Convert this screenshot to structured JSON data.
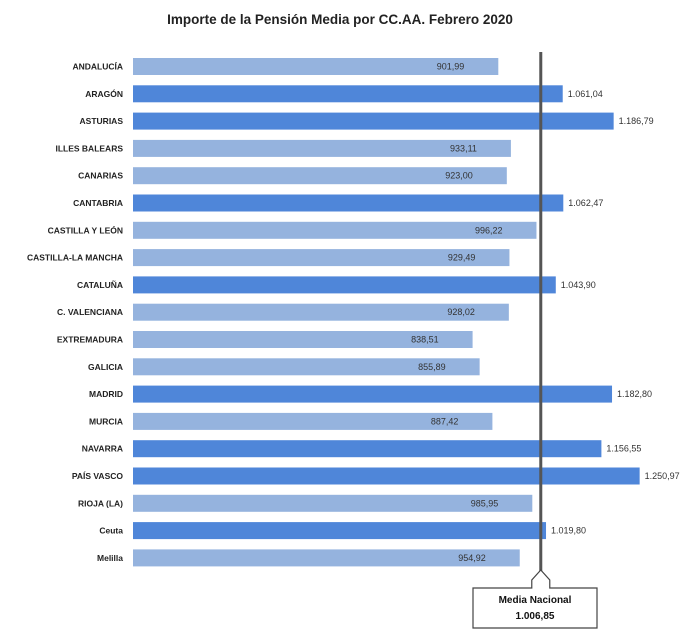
{
  "chart_data": {
    "type": "bar",
    "orientation": "horizontal",
    "title": "Importe de la Pensión Media  por CC.AA. Febrero 2020",
    "categories": [
      "ANDALUCÍA",
      "ARAGÓN",
      "ASTURIAS",
      "ILLES BALEARS",
      "CANARIAS",
      "CANTABRIA",
      "CASTILLA Y LEÓN",
      "CASTILLA-LA MANCHA",
      "CATALUÑA",
      "C. VALENCIANA",
      "EXTREMADURA",
      "GALICIA",
      "MADRID",
      "MURCIA",
      "NAVARRA",
      "PAÍS VASCO",
      "RIOJA (LA)",
      "Ceuta",
      "Melilla"
    ],
    "values": [
      901.99,
      1061.04,
      1186.79,
      933.11,
      923.0,
      1062.47,
      996.22,
      929.49,
      1043.9,
      928.02,
      838.51,
      855.89,
      1182.8,
      887.42,
      1156.55,
      1250.97,
      985.95,
      1019.8,
      954.92
    ],
    "value_labels": [
      "901,99",
      "1.061,04",
      "1.186,79",
      "933,11",
      "923,00",
      "1.062,47",
      "996,22",
      "929,49",
      "1.043,90",
      "928,02",
      "838,51",
      "855,89",
      "1.182,80",
      "887,42",
      "1.156,55",
      "1.250,97",
      "985,95",
      "1.019,80",
      "954,92"
    ],
    "colors": {
      "above_average": "#4F86D9",
      "below_average": "#95B3DE",
      "reference_line": "#555555"
    },
    "reference_line": {
      "label": "Media Nacional",
      "value": 1006.85,
      "value_label": "1.006,85"
    },
    "grid": false,
    "legend": "none"
  }
}
